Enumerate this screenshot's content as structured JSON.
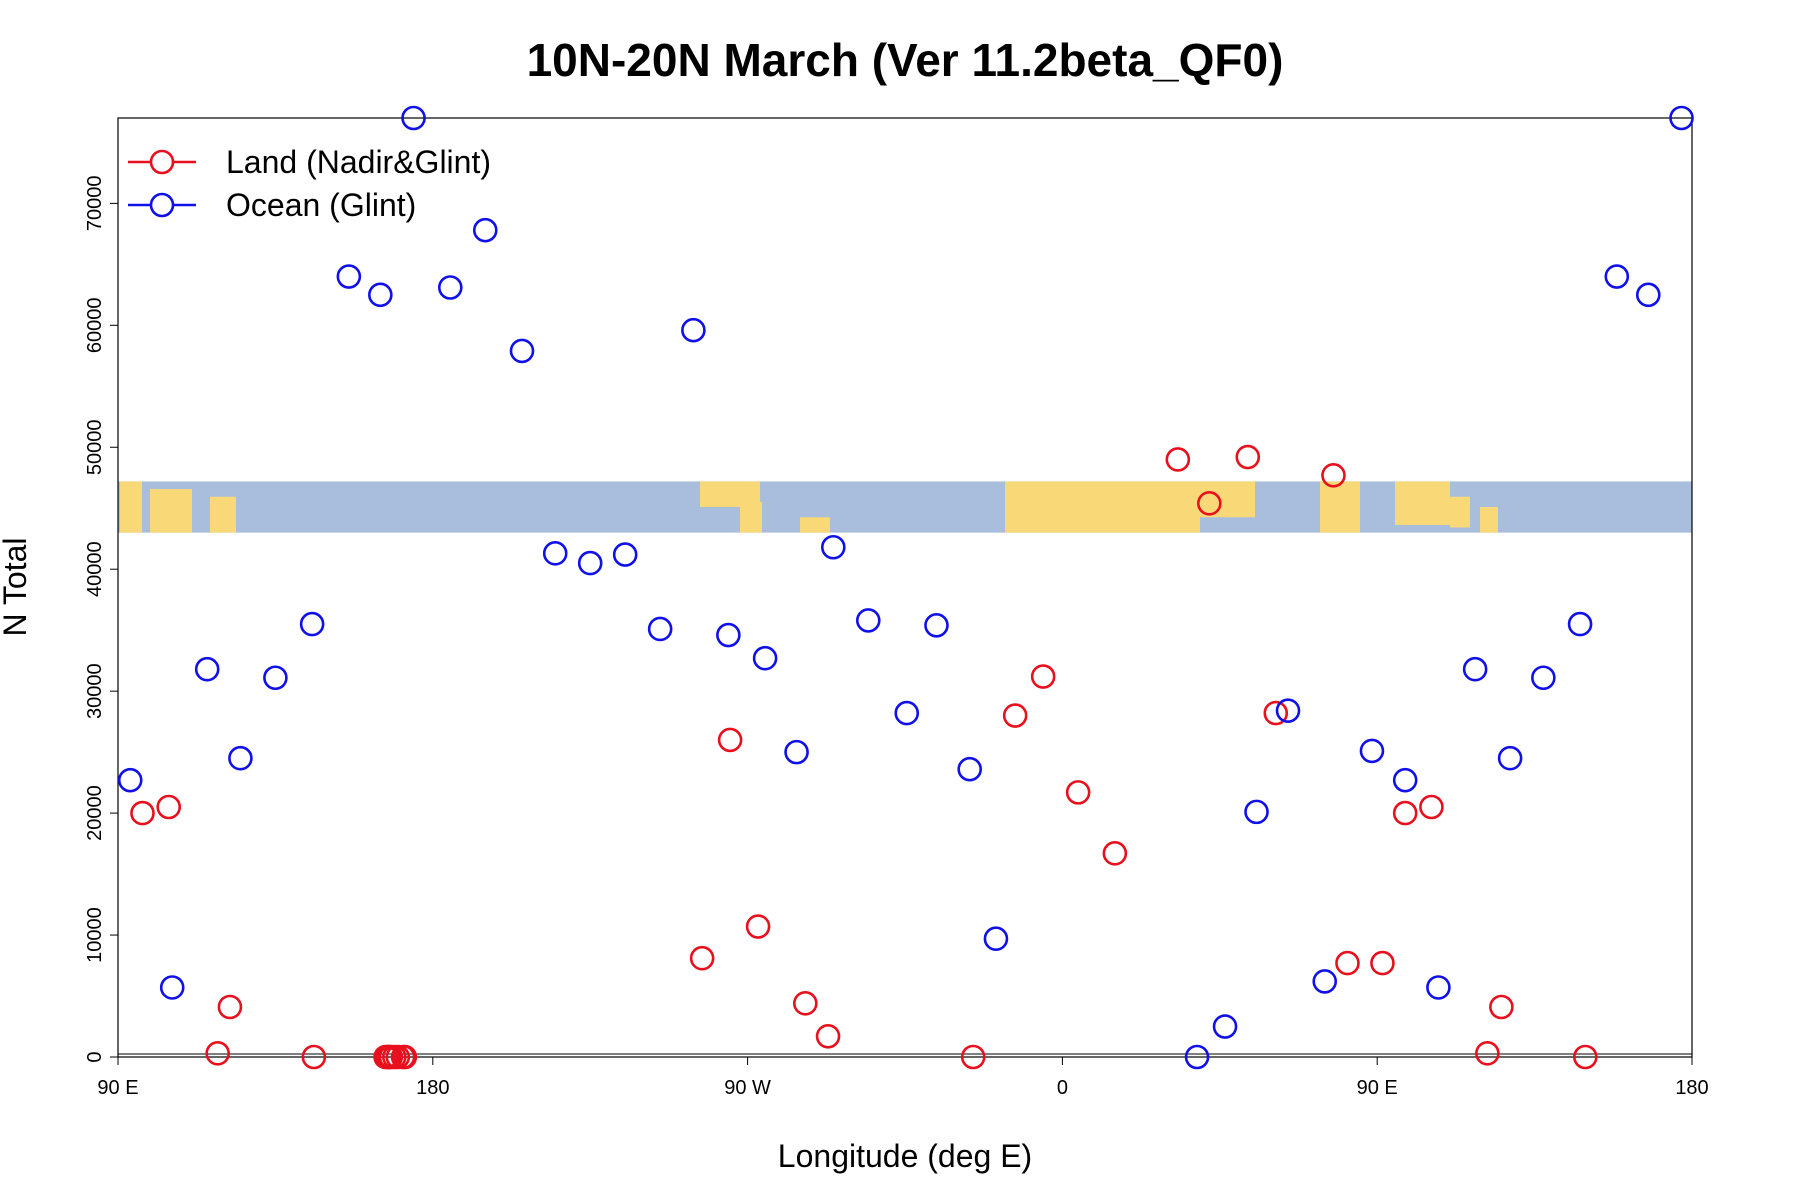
{
  "chart_data": {
    "type": "scatter",
    "title": "10N-20N March (Ver 11.2beta_QF0)",
    "xlabel": "Longitude (deg E)",
    "ylabel": "N Total",
    "xlim": [
      90,
      540
    ],
    "ylim": [
      0,
      77000
    ],
    "x_ticks": [
      {
        "value": 90,
        "label": "90 E"
      },
      {
        "value": 180,
        "label": "180"
      },
      {
        "value": 270,
        "label": "90 W"
      },
      {
        "value": 360,
        "label": "0"
      },
      {
        "value": 450,
        "label": "90 E"
      },
      {
        "value": 540,
        "label": "180"
      }
    ],
    "y_ticks": [
      {
        "value": 0,
        "label": "0"
      },
      {
        "value": 10000,
        "label": "10000"
      },
      {
        "value": 20000,
        "label": "20000"
      },
      {
        "value": 30000,
        "label": "30000"
      },
      {
        "value": 40000,
        "label": "40000"
      },
      {
        "value": 50000,
        "label": "50000"
      },
      {
        "value": 60000,
        "label": "60000"
      },
      {
        "value": 70000,
        "label": "70000"
      }
    ],
    "grid": false,
    "legend_position": "top-left",
    "map_band": {
      "y_range": [
        43000,
        47200
      ],
      "ocean_color": "#a8bedc",
      "land_color": "#f9d878"
    },
    "series": [
      {
        "name": "Land (Nadir&Glint)",
        "color": "#e8101c",
        "marker": "open-circle",
        "points": [
          [
            97,
            20000
          ],
          [
            104.5,
            20500
          ],
          [
            118.5,
            300
          ],
          [
            122,
            4100
          ],
          [
            146,
            0
          ],
          [
            257,
            8100
          ],
          [
            265,
            26000
          ],
          [
            273,
            10700
          ],
          [
            286.5,
            4400
          ],
          [
            293,
            1700
          ],
          [
            334.5,
            0
          ],
          [
            346.5,
            28000
          ],
          [
            354.5,
            31200
          ],
          [
            364.5,
            21700
          ],
          [
            375,
            16700
          ],
          [
            393,
            49000
          ],
          [
            402,
            45400
          ],
          [
            413,
            49200
          ],
          [
            421,
            28200
          ],
          [
            167.5,
            0
          ],
          [
            167.5,
            0
          ],
          [
            166.5,
            0
          ],
          [
            169,
            0
          ],
          [
            168,
            0
          ],
          [
            170,
            0
          ],
          [
            167,
            0
          ],
          [
            437.5,
            47700
          ],
          [
            171.5,
            0
          ],
          [
            172,
            0
          ],
          [
            451.5,
            7700
          ],
          [
            458,
            20000
          ],
          [
            465.5,
            20500
          ],
          [
            481.5,
            300
          ],
          [
            485.5,
            4100
          ],
          [
            509.5,
            0
          ],
          [
            441.5,
            7700
          ]
        ]
      },
      {
        "name": "Ocean (Glint)",
        "color": "#1010e8",
        "marker": "open-circle",
        "points": [
          [
            93.5,
            22700
          ],
          [
            105.5,
            5700
          ],
          [
            115.5,
            31800
          ],
          [
            125,
            24500
          ],
          [
            135,
            31100
          ],
          [
            145.5,
            35500
          ],
          [
            156,
            64000
          ],
          [
            165,
            62500
          ],
          [
            174.5,
            77000
          ],
          [
            185,
            63100
          ],
          [
            195,
            67800
          ],
          [
            205.5,
            57900
          ],
          [
            215,
            41300
          ],
          [
            225,
            40500
          ],
          [
            235,
            41200
          ],
          [
            245,
            35100
          ],
          [
            254.5,
            59600
          ],
          [
            264.5,
            34600
          ],
          [
            275,
            32700
          ],
          [
            284,
            25000
          ],
          [
            294.5,
            41800
          ],
          [
            304.5,
            35800
          ],
          [
            315.5,
            28200
          ],
          [
            324,
            35400
          ],
          [
            333.5,
            23600
          ],
          [
            341,
            9700
          ],
          [
            398.5,
            0
          ],
          [
            406.5,
            2500
          ],
          [
            415.5,
            20100
          ],
          [
            424.5,
            28400
          ],
          [
            435,
            6200
          ],
          [
            448.5,
            25100
          ],
          [
            458,
            22700
          ],
          [
            467.5,
            5700
          ],
          [
            478,
            31800
          ],
          [
            488,
            24500
          ],
          [
            497.5,
            31100
          ],
          [
            508,
            35500
          ],
          [
            518.5,
            64000
          ],
          [
            527.5,
            62500
          ],
          [
            537,
            77000
          ]
        ]
      }
    ]
  }
}
